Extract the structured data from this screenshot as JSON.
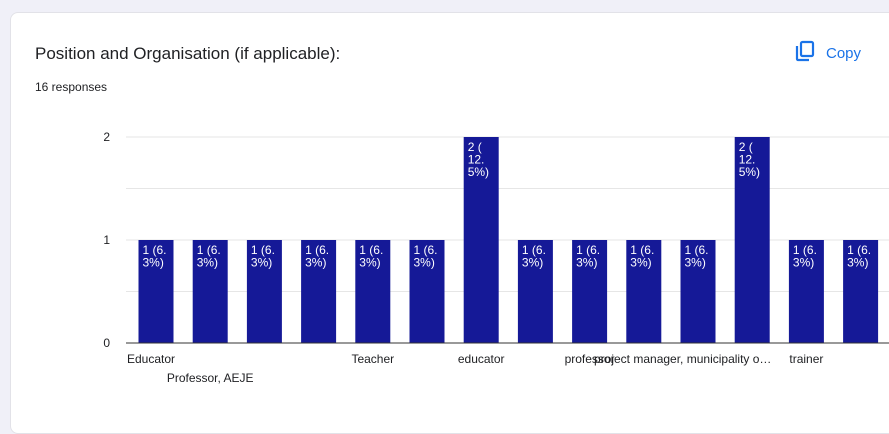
{
  "header": {
    "title": "Position and Organisation (if applicable):",
    "responses": "16 responses",
    "copy_label": "Copy",
    "copy_icon": "copy-icon"
  },
  "colors": {
    "bar": "#151997",
    "grid": "#e6e6e6",
    "axis": "#333333",
    "accent": "#1a73e8"
  },
  "chart_data": {
    "type": "bar",
    "ylim": [
      0,
      2
    ],
    "yticks": [
      "0",
      "1",
      "2"
    ],
    "grid": true,
    "categories": [
      "Educator",
      "Professor, AEJE",
      "",
      "",
      "Teacher",
      "",
      "educator",
      "",
      "professor",
      "",
      "project manager, municipality o…",
      "",
      "trainer",
      ""
    ],
    "values": [
      1,
      1,
      1,
      1,
      1,
      1,
      2,
      1,
      1,
      1,
      1,
      2,
      1,
      1
    ],
    "bar_labels": [
      [
        "1 (6.",
        "3%)"
      ],
      [
        "1 (6.",
        "3%)"
      ],
      [
        "1 (6.",
        "3%)"
      ],
      [
        "1 (6.",
        "3%)"
      ],
      [
        "1 (6.",
        "3%)"
      ],
      [
        "1 (6.",
        "3%)"
      ],
      [
        "2 (",
        "12.",
        "5%)"
      ],
      [
        "1 (6.",
        "3%)"
      ],
      [
        "1 (6.",
        "3%)"
      ],
      [
        "1 (6.",
        "3%)"
      ],
      [
        "1 (6.",
        "3%)"
      ],
      [
        "2 (",
        "12.",
        "5%)"
      ],
      [
        "1 (6.",
        "3%)"
      ],
      [
        "1 (6.",
        "3%)"
      ]
    ]
  }
}
